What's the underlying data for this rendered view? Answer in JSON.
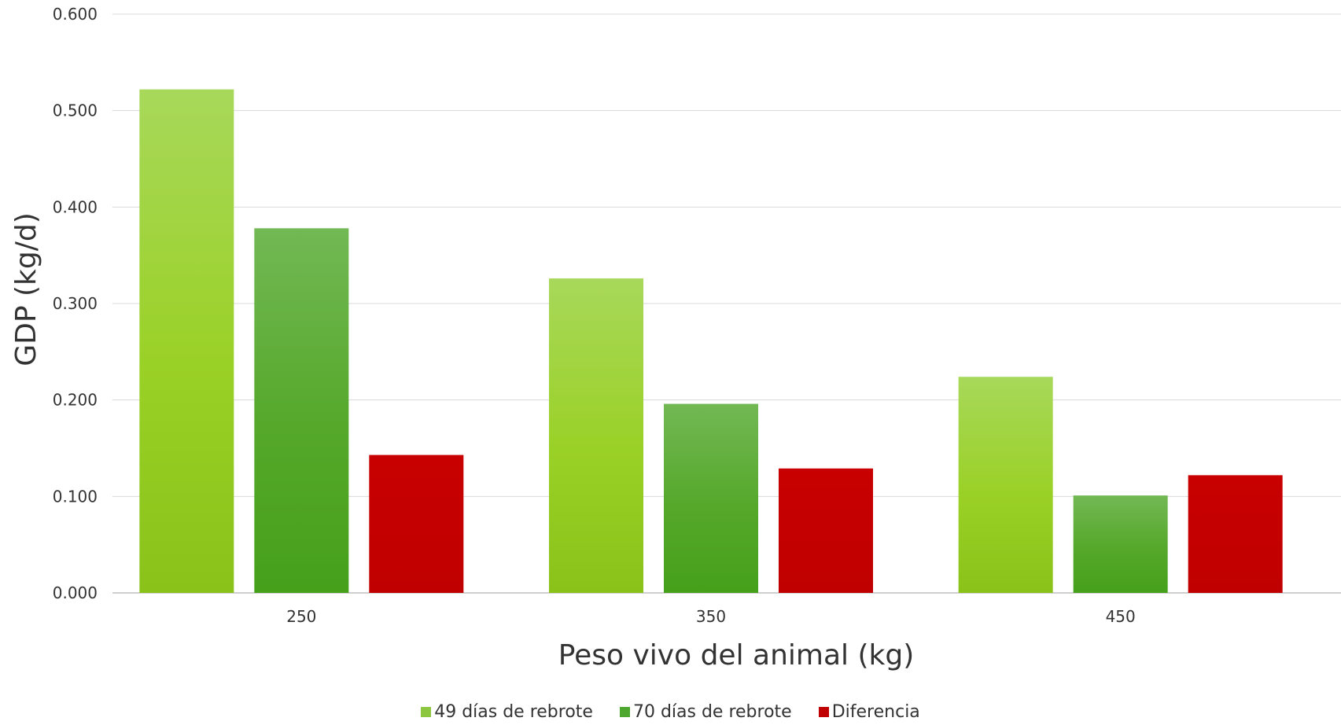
{
  "chart_data": {
    "type": "bar",
    "categories": [
      "250",
      "350",
      "450"
    ],
    "series": [
      {
        "name": "49 días de rebrote",
        "values": [
          0.522,
          0.326,
          0.224
        ],
        "color": "#8DC63F"
      },
      {
        "name": "70 días de rebrote",
        "values": [
          0.378,
          0.196,
          0.101
        ],
        "color": "#4EA72E"
      },
      {
        "name": "Diferencia",
        "values": [
          0.143,
          0.129,
          0.122
        ],
        "color": "#C00000"
      }
    ],
    "xlabel": "Peso vivo del animal (kg)",
    "ylabel": "GDP (kg/d)",
    "ylim": [
      0,
      0.6
    ],
    "yticks": [
      "0.000",
      "0.100",
      "0.200",
      "0.300",
      "0.400",
      "0.500",
      "0.600"
    ],
    "grid": true,
    "legend_position": "bottom"
  }
}
